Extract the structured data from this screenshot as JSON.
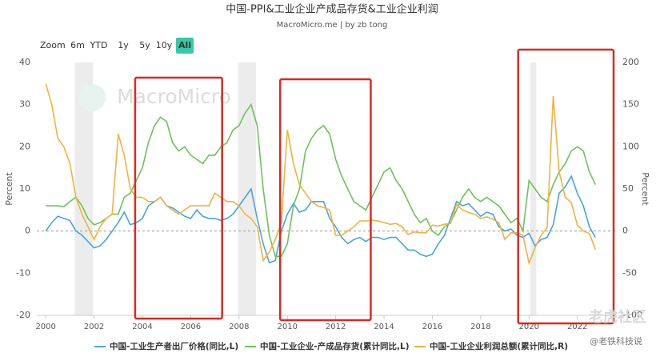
{
  "chart_data": {
    "type": "line",
    "title": "中国-PPI&工业企业产成品存货&工业企业利润",
    "subtitle": "MacroMicro.me | by zb tong",
    "range_selector": {
      "label": "Zoom",
      "buttons": [
        "6m",
        "YTD",
        "1y",
        "5y",
        "10y",
        "All"
      ],
      "selected": 5
    },
    "watermarks": [
      "MacroMicro",
      "老虎社区",
      "@老铁科技说"
    ],
    "y_label": "Percent",
    "y2_label": "Percent",
    "xlim": [
      1999.63,
      2023.6
    ],
    "xticks": [
      2000,
      2002,
      2004,
      2006,
      2008,
      2010,
      2012,
      2014,
      2016,
      2018,
      2020,
      2022
    ],
    "ylim": [
      -20,
      40
    ],
    "yticks": [
      -20,
      -10,
      0,
      10,
      20,
      30,
      40
    ],
    "y2lim": [
      -100,
      200
    ],
    "y2ticks": [
      -100,
      -50,
      0,
      50,
      100,
      150,
      200
    ],
    "zero_line": true,
    "shaded_ranges": [
      [
        2001.2,
        2001.95
      ],
      [
        2007.95,
        2008.7
      ],
      [
        2020.05,
        2020.3
      ]
    ],
    "highlight_ranges": [
      [
        2003.7,
        2007.3
      ],
      [
        2009.7,
        2013.45
      ],
      [
        2019.55,
        2023.5
      ]
    ],
    "x": [
      2000,
      2000.25,
      2000.5,
      2000.75,
      2001,
      2001.25,
      2001.5,
      2001.75,
      2002,
      2002.25,
      2002.5,
      2002.75,
      2003,
      2003.25,
      2003.5,
      2003.75,
      2004,
      2004.25,
      2004.5,
      2004.75,
      2005,
      2005.25,
      2005.5,
      2005.75,
      2006,
      2006.25,
      2006.5,
      2006.75,
      2007,
      2007.25,
      2007.5,
      2007.75,
      2008,
      2008.25,
      2008.5,
      2008.75,
      2009,
      2009.25,
      2009.5,
      2009.75,
      2010,
      2010.25,
      2010.5,
      2010.75,
      2011,
      2011.25,
      2011.5,
      2011.75,
      2012,
      2012.25,
      2012.5,
      2012.75,
      2013,
      2013.25,
      2013.5,
      2013.75,
      2014,
      2014.25,
      2014.5,
      2014.75,
      2015,
      2015.25,
      2015.5,
      2015.75,
      2016,
      2016.25,
      2016.5,
      2016.75,
      2017,
      2017.25,
      2017.5,
      2017.75,
      2018,
      2018.25,
      2018.5,
      2018.75,
      2019,
      2019.25,
      2019.5,
      2019.75,
      2020,
      2020.25,
      2020.5,
      2020.75,
      2021,
      2021.25,
      2021.5,
      2021.75,
      2022,
      2022.25,
      2022.5,
      2022.75
    ],
    "series": [
      {
        "name": "中国-工业生产者出厂价格(同比,L)",
        "color": "#45a6dc",
        "axis": "y",
        "values": [
          0,
          2,
          3.5,
          3,
          2.5,
          0,
          -1,
          -2.5,
          -4,
          -3.5,
          -2,
          0,
          2,
          4.5,
          1.5,
          2,
          3,
          6,
          7,
          8,
          6,
          5.5,
          4.5,
          3.5,
          3,
          5,
          3.5,
          3,
          3,
          2.5,
          3,
          4,
          6,
          8,
          10,
          3,
          -3,
          -7.5,
          -7,
          0,
          4,
          6.5,
          4.5,
          5,
          7,
          7,
          7,
          3,
          1,
          -1.5,
          -3,
          -2,
          -1.5,
          -2.5,
          -1.5,
          -1.5,
          -2,
          -1.5,
          -1.5,
          -3,
          -4.5,
          -4.5,
          -5.5,
          -6,
          -5.5,
          -3,
          -1,
          3,
          7,
          6,
          6.5,
          5,
          3.5,
          4.5,
          4,
          1,
          0,
          0.5,
          -1,
          -1.5,
          -0.5,
          -3.5,
          -2,
          -1.5,
          1.5,
          9,
          10.5,
          13,
          9,
          6,
          1,
          -1.5
        ]
      },
      {
        "name": "中国-工业企业-产成品存货(累计同比,L)",
        "color": "#6cc35a",
        "axis": "y",
        "values": [
          6,
          6,
          6,
          5.8,
          7,
          8,
          6,
          3,
          1.5,
          2,
          3,
          4,
          4,
          8,
          9,
          12,
          15,
          21,
          25,
          27,
          26,
          21,
          19,
          20,
          18,
          17,
          16,
          18,
          18,
          20,
          21,
          24,
          25,
          28,
          30,
          25,
          10,
          -1,
          -6,
          -6,
          -3,
          6,
          10,
          19,
          22,
          24,
          25,
          23,
          17,
          13,
          10,
          7,
          6,
          5,
          8,
          11,
          14,
          15,
          12,
          10,
          7,
          4,
          2,
          3,
          0,
          -1,
          1,
          2,
          5,
          8,
          10,
          8,
          7,
          8,
          7,
          6,
          4,
          2,
          3,
          0,
          12,
          10,
          8,
          7,
          11,
          14,
          16,
          19,
          20,
          19,
          14,
          11
        ]
      },
      {
        "name": "中国-工业企业利润总额(累计同比,R)",
        "color": "#f4b13e",
        "axis": "y2",
        "values": [
          175,
          150,
          110,
          100,
          80,
          40,
          20,
          5,
          -10,
          5,
          15,
          20,
          115,
          90,
          50,
          40,
          40,
          35,
          35,
          40,
          30,
          25,
          20,
          25,
          30,
          30,
          30,
          30,
          45,
          40,
          35,
          35,
          30,
          20,
          15,
          5,
          -35,
          -25,
          -10,
          10,
          120,
          80,
          55,
          45,
          35,
          30,
          28,
          25,
          -5,
          -5,
          0,
          5,
          12,
          12,
          13,
          12,
          10,
          8,
          9,
          5,
          -4,
          -1,
          -2,
          -2,
          7,
          6,
          8,
          9,
          32,
          25,
          22,
          20,
          15,
          17,
          14,
          10,
          -10,
          -2,
          -2,
          -5,
          -38,
          -20,
          -5,
          4,
          160,
          70,
          40,
          34,
          7,
          0,
          -3,
          -22
        ]
      }
    ]
  }
}
